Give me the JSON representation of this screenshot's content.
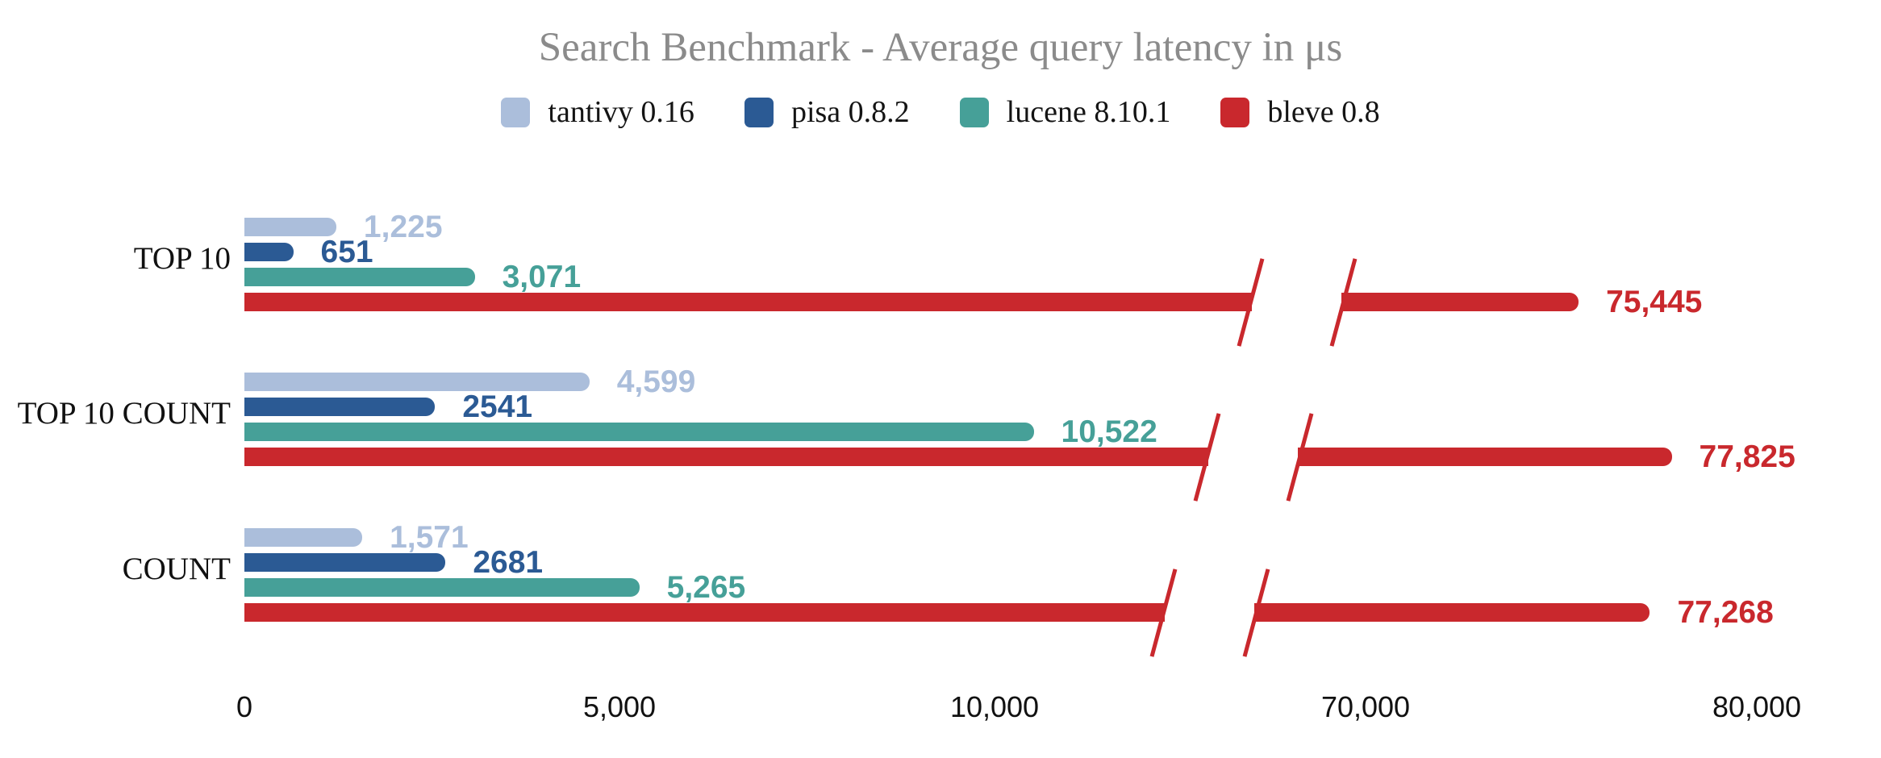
{
  "chart_data": {
    "type": "bar",
    "orientation": "horizontal",
    "title": "Search Benchmark - Average query latency in μs",
    "value_unit": "μs",
    "categories": [
      "TOP 10",
      "TOP 10 COUNT",
      "COUNT"
    ],
    "series": [
      {
        "name": "tantivy 0.16",
        "color": "#abbedb",
        "values": [
          1225,
          4599,
          1571
        ],
        "labels": [
          "1,225",
          "4,599",
          "1,571"
        ]
      },
      {
        "name": "pisa 0.8.2",
        "color": "#2b5a94",
        "values": [
          651,
          2541,
          2681
        ],
        "labels": [
          "651",
          "2541",
          "2681"
        ]
      },
      {
        "name": "lucene 8.10.1",
        "color": "#46a098",
        "values": [
          3071,
          10522,
          5265
        ],
        "labels": [
          "3,071",
          "10,522",
          "5,265"
        ]
      },
      {
        "name": "bleve 0.8",
        "color": "#c9282d",
        "values": [
          75445,
          77825,
          77268
        ],
        "labels": [
          "75,445",
          "77,825",
          "77,268"
        ]
      }
    ],
    "legend_position": "top",
    "grid": false,
    "x_axis": {
      "ticks": [
        {
          "label": "0",
          "value": 0
        },
        {
          "label": "5,000",
          "value": 5000
        },
        {
          "label": "10,000",
          "value": 10000
        },
        {
          "label": "70,000",
          "value": 70000
        },
        {
          "label": "80,000",
          "value": 80000
        }
      ],
      "break": {
        "after_value": 12000,
        "resume_value": 68500
      },
      "left_segment_range": [
        0,
        12500
      ],
      "right_segment_range": [
        68500,
        81000
      ]
    },
    "title_color": "#8b8b8b",
    "text_color": "#141414"
  }
}
